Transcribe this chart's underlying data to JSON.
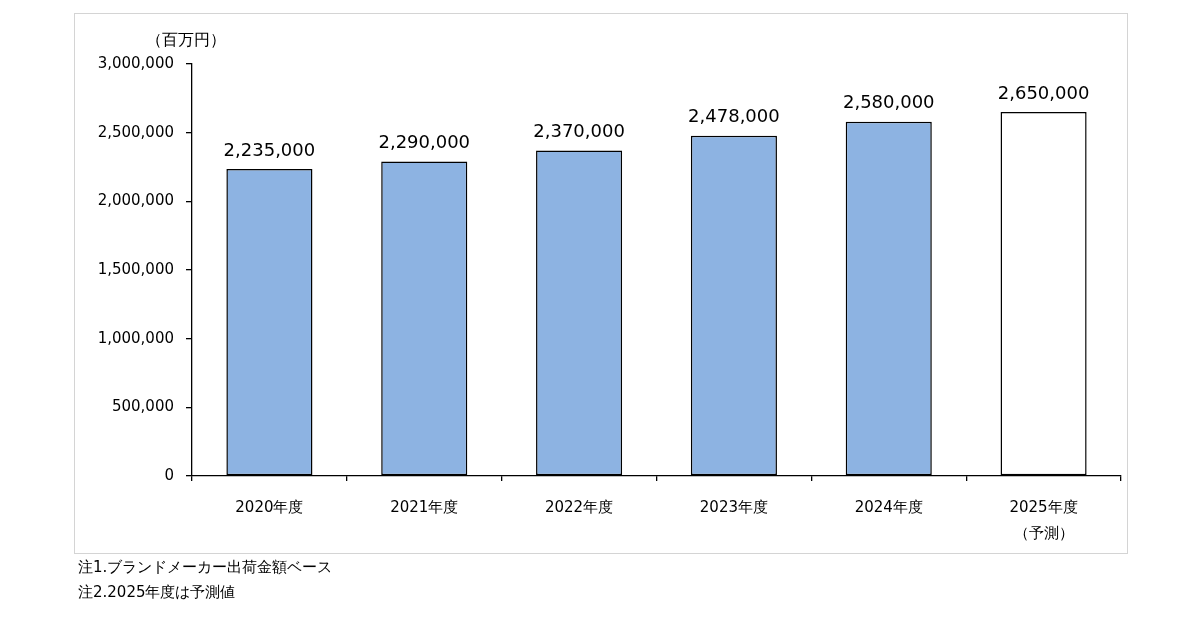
{
  "chart_data": {
    "type": "bar",
    "ylabel": "（百万円）",
    "categories": [
      "2020年度",
      "2021年度",
      "2022年度",
      "2023年度",
      "2024年度",
      "2025年度（予測）"
    ],
    "values": [
      2235000,
      2290000,
      2370000,
      2478000,
      2580000,
      2650000
    ],
    "colors": [
      "#8db3e2",
      "#8db3e2",
      "#8db3e2",
      "#8db3e2",
      "#8db3e2",
      "#ffffff"
    ],
    "value_labels": [
      "2,235,000",
      "2,290,000",
      "2,370,000",
      "2,478,000",
      "2,580,000",
      "2,650,000"
    ],
    "ylim": [
      0,
      3000000
    ],
    "yticks": [
      0,
      {
        "value": 500000,
        "label": "500,000"
      },
      {
        "value": 1000000,
        "label": "1,000,000"
      },
      {
        "value": 1500000,
        "label": "1,500,000"
      },
      {
        "value": 2000000,
        "label": "2,000,000"
      },
      {
        "value": 2500000,
        "label": "2,500,000"
      },
      {
        "value": 3000000,
        "label": "3,000,000"
      }
    ],
    "grid": false,
    "annotations": [
      "注1.ブランドメーカー出荷金額ベース",
      "注2.2025年度は予測値"
    ]
  }
}
